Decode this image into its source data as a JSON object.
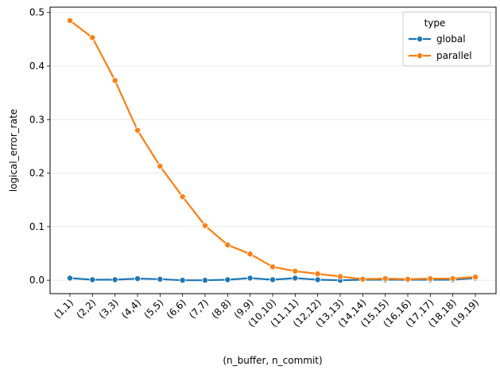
{
  "chart_data": {
    "type": "line",
    "xlabel": "(n_buffer, n_commit)",
    "ylabel": "logical_error_rate",
    "categories": [
      "(1,1)",
      "(2,2)",
      "(3,3)",
      "(4,4)",
      "(5,5)",
      "(6,6)",
      "(7,7)",
      "(8,8)",
      "(9,9)",
      "(10,10)",
      "(11,11)",
      "(12,12)",
      "(13,13)",
      "(14,14)",
      "(15,15)",
      "(16,16)",
      "(17,17)",
      "(18,18)",
      "(19,19)"
    ],
    "ylim": [
      -0.025,
      0.51
    ],
    "yticks": [
      0.0,
      0.1,
      0.2,
      0.3,
      0.4,
      0.5
    ],
    "ytick_labels": [
      "0.0",
      "0.1",
      "0.2",
      "0.3",
      "0.4",
      "0.5"
    ],
    "grid": "horizontal",
    "legend": {
      "title": "type",
      "placement": "top-right"
    },
    "series": [
      {
        "name": "global",
        "color": "#1f77b4",
        "values": [
          0.004,
          0.001,
          0.001,
          0.003,
          0.002,
          0.0,
          0.0,
          0.001,
          0.004,
          0.001,
          0.004,
          0.001,
          0.0,
          0.001,
          0.001,
          0.001,
          0.001,
          0.001,
          0.004
        ]
      },
      {
        "name": "parallel",
        "color": "#ff7f0e",
        "values": [
          0.485,
          0.453,
          0.373,
          0.28,
          0.213,
          0.156,
          0.102,
          0.066,
          0.049,
          0.025,
          0.017,
          0.012,
          0.007,
          0.002,
          0.003,
          0.002,
          0.003,
          0.003,
          0.006
        ]
      }
    ]
  }
}
